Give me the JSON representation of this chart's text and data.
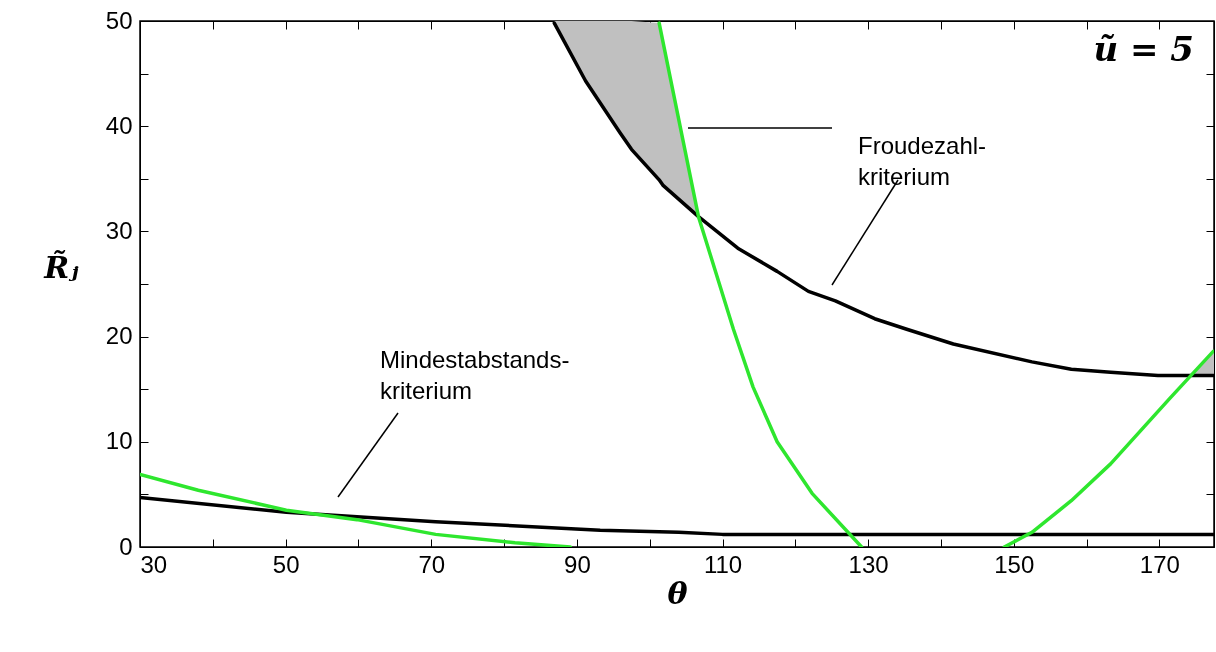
{
  "chart_data": {
    "type": "line",
    "xlabel": "θ",
    "ylabel": "R̃ⱼ",
    "xlim": [
      30,
      177.5
    ],
    "ylim": [
      0,
      50
    ],
    "xticks": [
      30,
      {
        "value": 40,
        "label": null
      },
      50,
      {
        "value": 60,
        "label": null
      },
      70,
      {
        "value": 80,
        "label": null
      },
      90,
      {
        "value": 100,
        "label": null
      },
      110,
      {
        "value": 120,
        "label": null
      },
      130,
      {
        "value": 140,
        "label": null
      },
      150,
      {
        "value": 160,
        "label": null
      },
      170
    ],
    "yticks": [
      0,
      {
        "value": 5,
        "label": null
      },
      10,
      {
        "value": 15,
        "label": null
      },
      20,
      {
        "value": 25,
        "label": null
      },
      30,
      {
        "value": 35,
        "label": null
      },
      40,
      {
        "value": 45,
        "label": null
      },
      50
    ],
    "grid": false,
    "series": [
      {
        "color": "#000000",
        "x": [
          86.9,
          91.2,
          95.9,
          97.5,
          101.3,
          101.8,
          106.7,
          112.1,
          117.5,
          121.8,
          125.5,
          130.9,
          135.3,
          141.7,
          152.5,
          157.9,
          163.3,
          169.8,
          174.3,
          177.5
        ],
        "values": [
          49.8,
          44.3,
          39.4,
          37.8,
          34.9,
          34.4,
          31.4,
          28.4,
          26.2,
          24.3,
          23.4,
          21.7,
          20.7,
          19.3,
          17.6,
          16.9,
          16.6,
          16.3,
          16.3,
          16.3
        ],
        "lower": [
          49.8,
          44.3,
          39.4,
          37.8,
          34.9,
          34.4,
          31.4,
          null,
          null,
          null,
          null,
          null,
          null,
          null,
          null,
          null,
          null,
          null,
          16.3,
          16.3
        ],
        "upper": [
          50,
          50,
          50,
          50,
          49.8,
          48.1,
          31.4,
          null,
          null,
          null,
          null,
          null,
          null,
          null,
          null,
          null,
          null,
          null,
          16.3,
          18.6
        ]
      },
      {
        "color": "#000000",
        "x": [
          30,
          50.1,
          70.6,
          93.2,
          104,
          110,
          177.5
        ],
        "values": [
          4.7,
          3.3,
          2.4,
          1.6,
          1.4,
          1.2,
          1.2
        ]
      },
      {
        "color": "#2ee62e",
        "x": [
          30,
          38,
          50.1,
          59.8,
          70.6,
          81.5,
          89.1
        ],
        "values": [
          6.9,
          5.4,
          3.5,
          2.6,
          1.2,
          0.4,
          0
        ]
      },
      {
        "color": "#2ee62e",
        "x": [
          101.3,
          106.7,
          111.5,
          114.2,
          117.5,
          122.3,
          129.1
        ],
        "values": [
          49.8,
          31.4,
          20.7,
          15.2,
          10.0,
          5.1,
          0
        ]
      },
      {
        "color": "#2ee62e",
        "x": [
          148.7,
          152.5,
          157.9,
          163.3,
          171.4,
          177.4
        ],
        "values": [
          0,
          1.4,
          4.4,
          7.9,
          14.1,
          18.6
        ]
      }
    ],
    "annotations": [
      "Froudezahl-\nkriterium",
      "Mindestabstands-\nkriterium",
      "ũ = 5"
    ]
  }
}
